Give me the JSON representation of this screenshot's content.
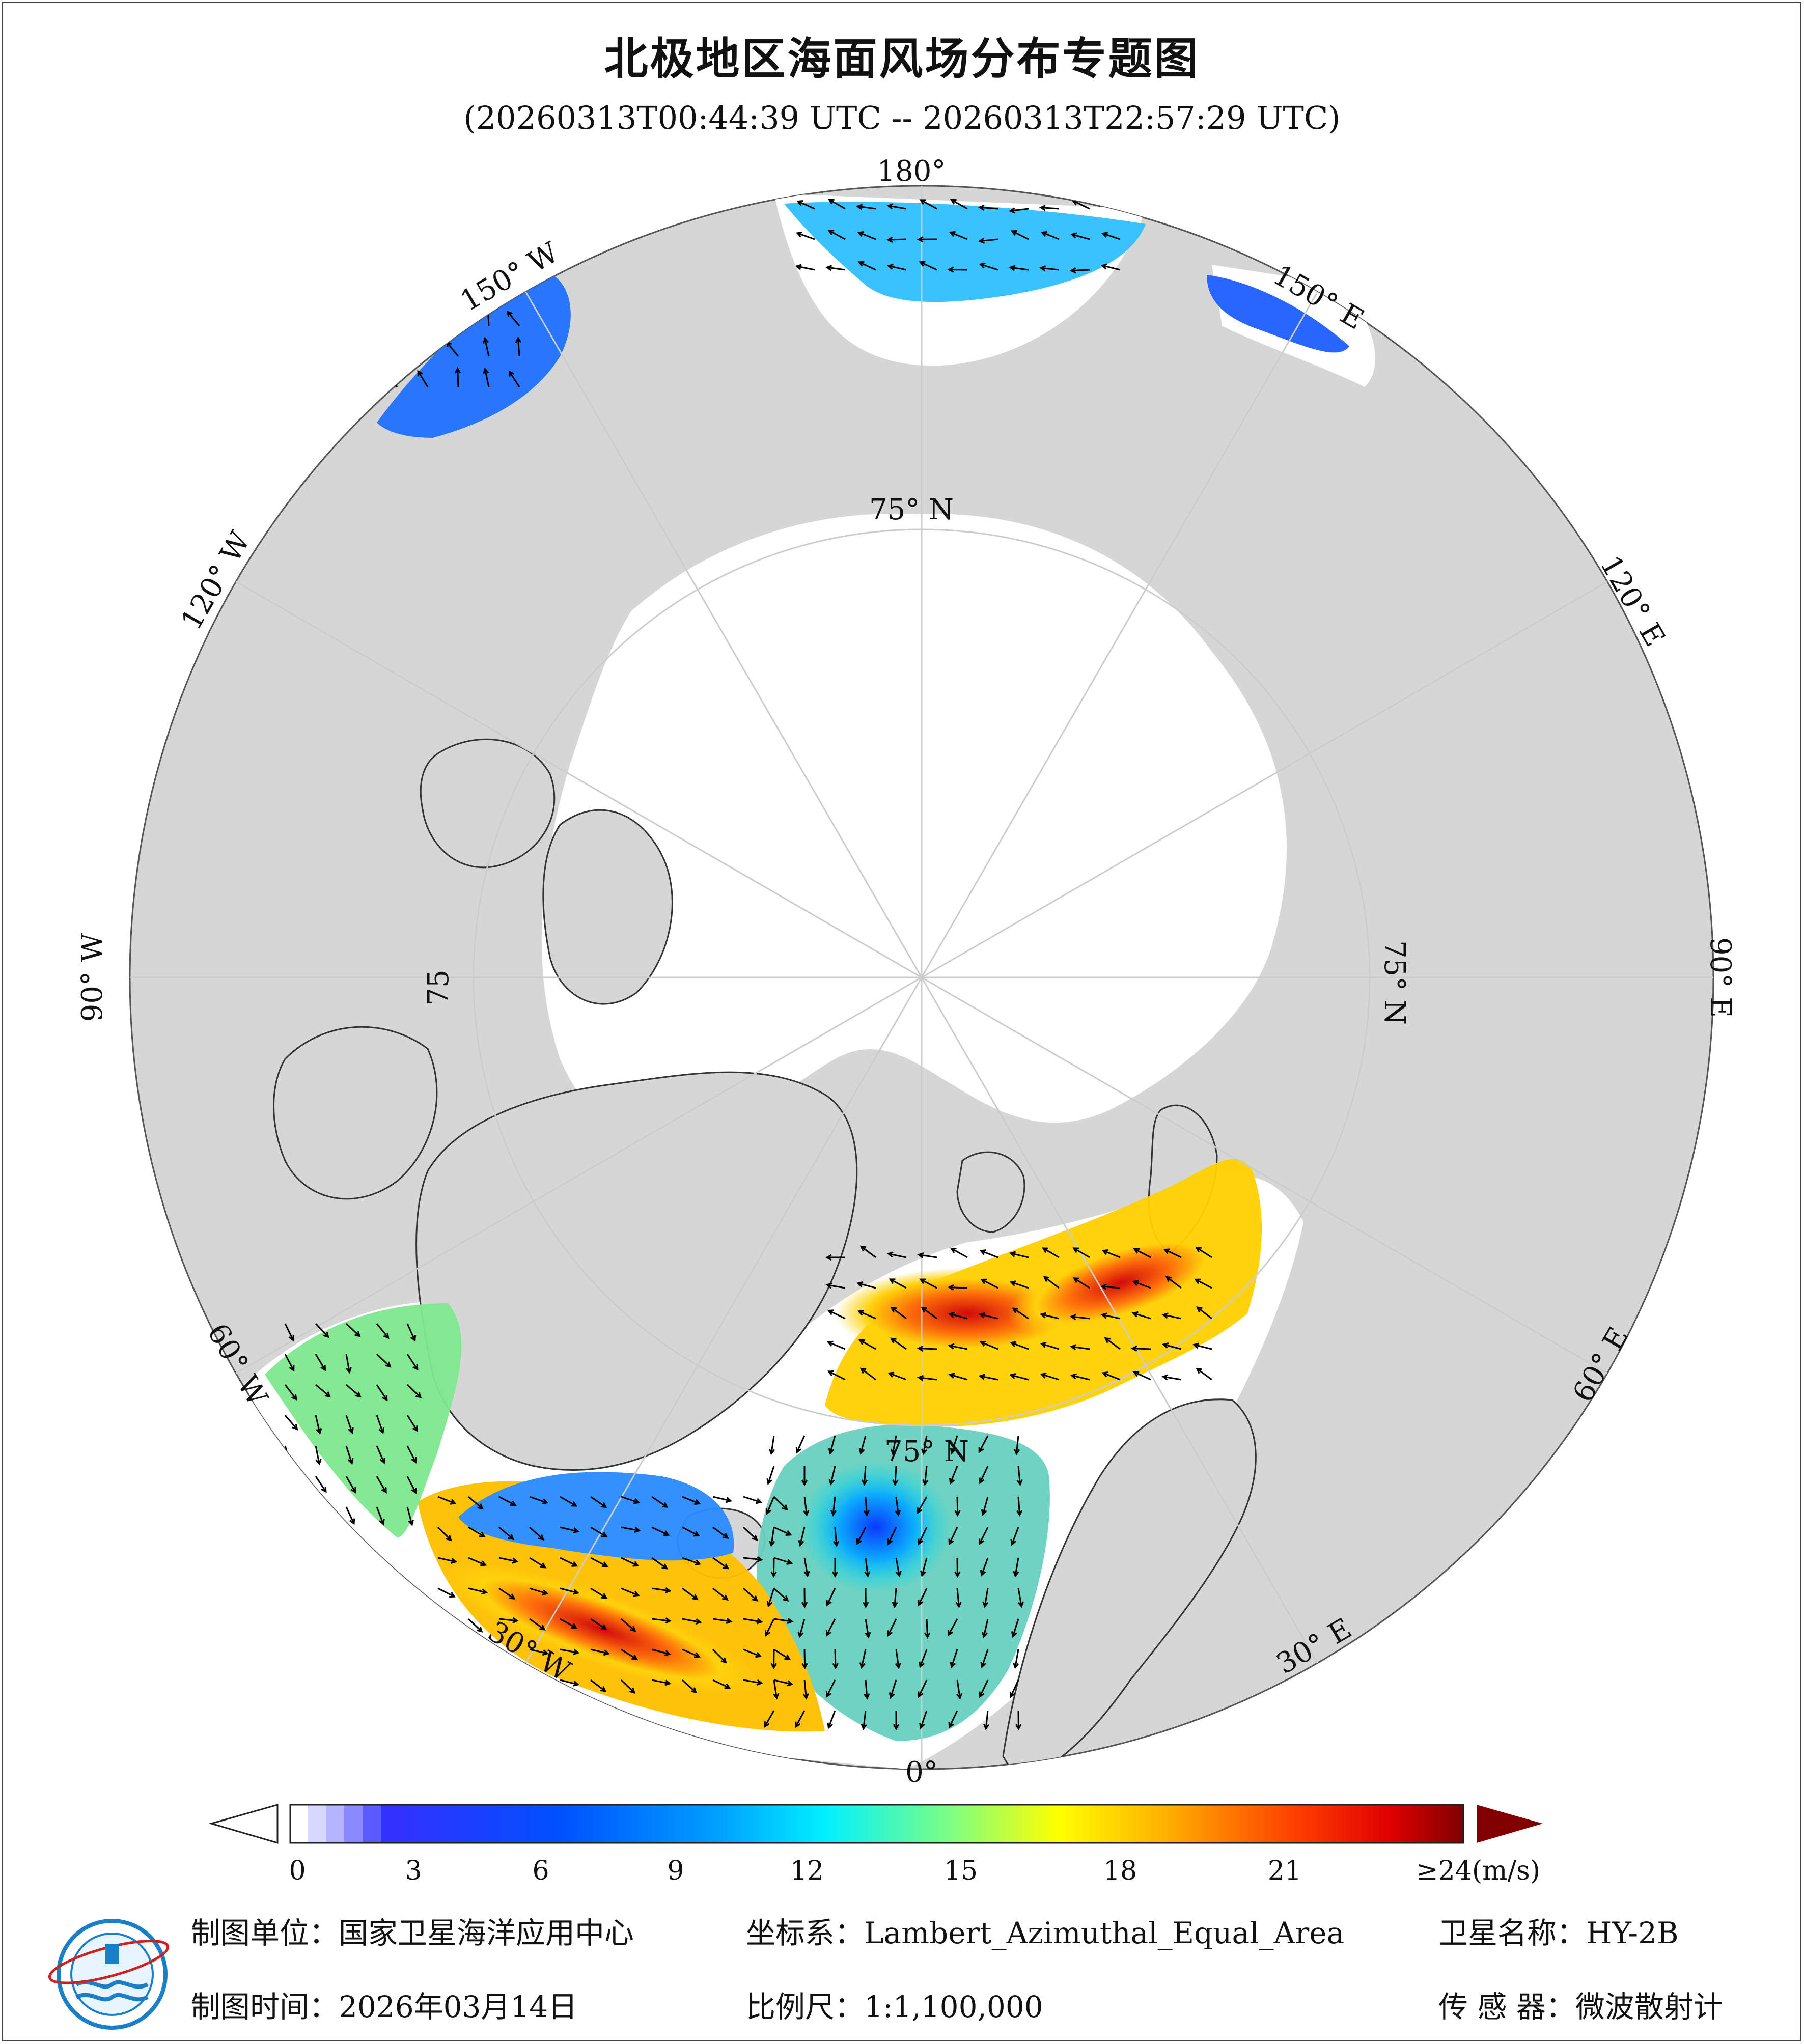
{
  "title": "北极地区海面风场分布专题图",
  "time_range": "(20260313T00:44:39 UTC -- 20260313T22:57:29 UTC)",
  "graticule": {
    "lon_labels": [
      "180°",
      "150° E",
      "120° E",
      "90° E",
      "60° E",
      "30° E",
      "0°",
      "30° W",
      "60° W",
      "90° W",
      "120° W",
      "150° W"
    ],
    "lat_labels": [
      "75° N",
      "75° N",
      "75° N",
      "75"
    ]
  },
  "colorbar": {
    "ticks": [
      "0",
      "3",
      "6",
      "9",
      "12",
      "15",
      "18",
      "21",
      "≥24(m/s)"
    ],
    "colors": [
      "#ffffff",
      "#d8d8ff",
      "#a0a0ff",
      "#3232ff",
      "#0050ff",
      "#00a0ff",
      "#00f0ff",
      "#80ff80",
      "#ffff00",
      "#ffb000",
      "#ff5000",
      "#e00000",
      "#800000"
    ]
  },
  "footer": {
    "unit": "制图单位：国家卫星海洋应用中心",
    "date": "制图时间：2026年03月14日",
    "crs": "坐标系：Lambert_Azimuthal_Equal_Area",
    "scale": "比例尺：1:1,100,000",
    "satellite": "卫星名称：HY-2B",
    "sensor": "传 感 器：微波散射计"
  },
  "colors": {
    "land": "#d6d6d6",
    "ocean": "#ffffff",
    "graticule": "#cccccc",
    "arrow": "#000000"
  }
}
